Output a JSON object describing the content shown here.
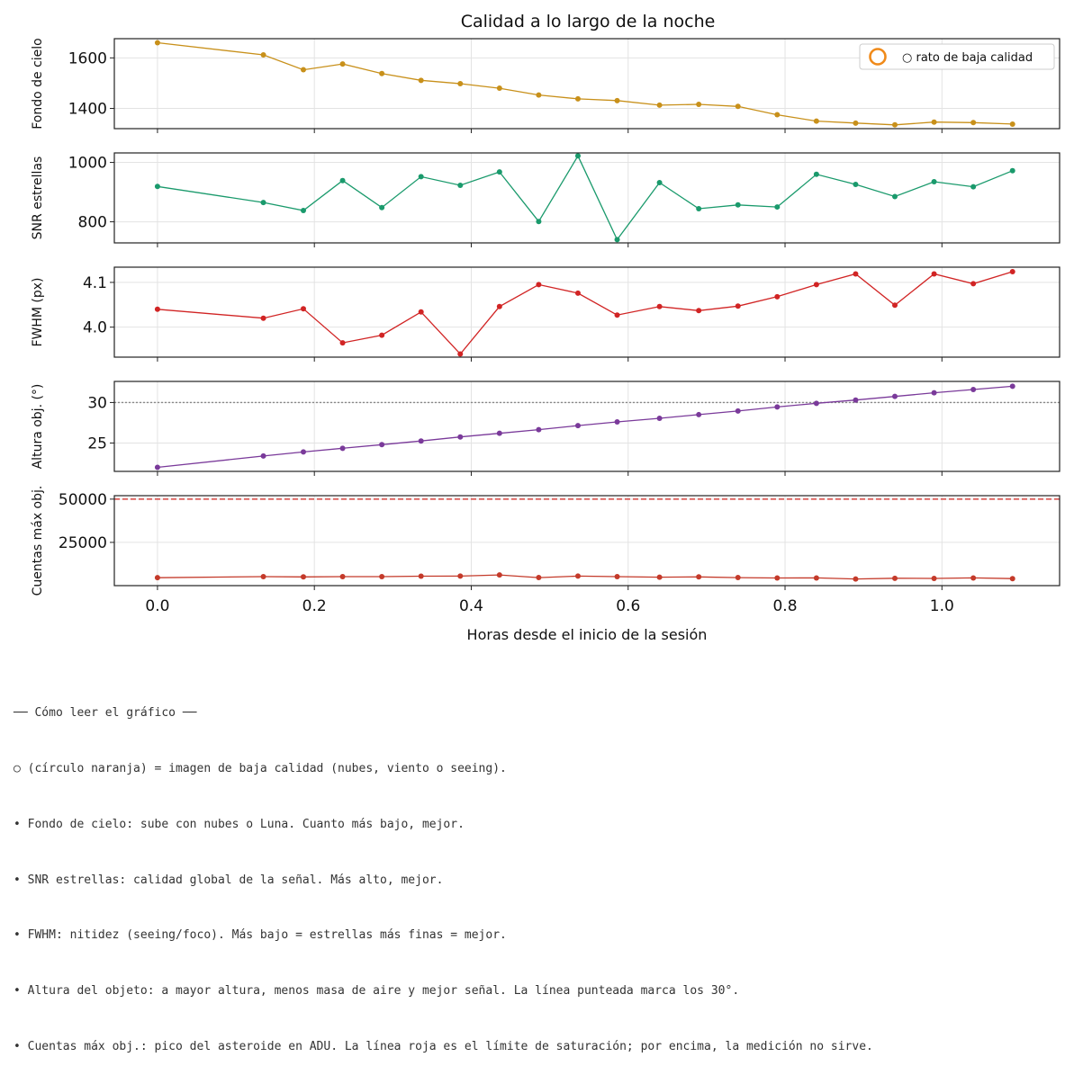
{
  "chart_data": {
    "type": "line",
    "title": "Calidad a lo largo de la noche",
    "xlabel": "Horas desde el inicio de la sesión",
    "xlim": [
      -0.055,
      1.15
    ],
    "xticks": [
      0.0,
      0.2,
      0.4,
      0.6,
      0.8,
      1.0
    ],
    "xtick_labels": [
      "0.0",
      "0.2",
      "0.4",
      "0.6",
      "0.8",
      "1.0"
    ],
    "x": [
      0.0,
      0.135,
      0.186,
      0.236,
      0.286,
      0.336,
      0.386,
      0.436,
      0.486,
      0.536,
      0.586,
      0.64,
      0.69,
      0.74,
      0.79,
      0.84,
      0.89,
      0.94,
      0.99,
      1.04,
      1.09
    ],
    "grid": true,
    "legend": {
      "position": "upper right",
      "entries": [
        {
          "marker": "orange-circle",
          "label": "○ rato de baja calidad"
        }
      ]
    },
    "panels": [
      {
        "ylabel": "Fondo de cielo",
        "color": "#c8901a",
        "ylim": [
          1320,
          1676
        ],
        "yticks": [
          1400,
          1600
        ],
        "ytick_labels": [
          "1400",
          "1600"
        ],
        "values": [
          1660,
          1612,
          1553,
          1576,
          1538,
          1511,
          1498,
          1480,
          1453,
          1438,
          1431,
          1413,
          1416,
          1408,
          1375,
          1350,
          1342,
          1335,
          1346,
          1344,
          1338
        ]
      },
      {
        "ylabel": "SNR estrellas",
        "color": "#1a9a6c",
        "ylim": [
          729,
          1032
        ],
        "yticks": [
          800,
          1000
        ],
        "ytick_labels": [
          "800",
          "1000"
        ],
        "values": [
          919,
          865,
          838,
          939,
          848,
          952,
          923,
          968,
          801,
          1022,
          740,
          932,
          844,
          857,
          850,
          960,
          926,
          885,
          935,
          918,
          972
        ]
      },
      {
        "ylabel": "FWHM (px)",
        "color": "#d12424",
        "ylim": [
          3.933,
          4.134
        ],
        "yticks": [
          4.0,
          4.1
        ],
        "ytick_labels": [
          "4.0",
          "4.1"
        ],
        "values": [
          4.04,
          4.02,
          4.041,
          3.965,
          3.982,
          4.034,
          3.94,
          4.046,
          4.095,
          4.076,
          4.027,
          4.046,
          4.037,
          4.047,
          4.068,
          4.095,
          4.119,
          4.049,
          4.119,
          4.097,
          4.124
        ]
      },
      {
        "ylabel": "Altura obj. (°)",
        "color": "#7a3a9a",
        "ylim": [
          21.5,
          32.6
        ],
        "yticks": [
          25,
          30
        ],
        "ytick_labels": [
          "25",
          "30"
        ],
        "hline": {
          "y": 30,
          "style": "dotted",
          "color": "#888888"
        },
        "values": [
          22.0,
          23.4,
          23.9,
          24.35,
          24.8,
          25.25,
          25.75,
          26.2,
          26.65,
          27.15,
          27.6,
          28.05,
          28.5,
          28.95,
          29.45,
          29.9,
          30.3,
          30.75,
          31.2,
          31.6,
          32.0
        ]
      },
      {
        "ylabel": "Cuentas máx obj.",
        "color": "#c43a2a",
        "ylim": [
          0,
          52000
        ],
        "yticks": [
          25000,
          50000
        ],
        "ytick_labels": [
          "25000",
          "50000"
        ],
        "hline": {
          "y": 50000,
          "style": "dashed",
          "color": "#d9534f"
        },
        "values": [
          4600,
          5200,
          5050,
          5200,
          5200,
          5450,
          5500,
          6200,
          4650,
          5500,
          5200,
          4900,
          5050,
          4650,
          4400,
          4450,
          3850,
          4250,
          4150,
          4450,
          4050
        ]
      }
    ]
  },
  "notes": {
    "heading": "── Cómo leer el gráfico ──",
    "lines": [
      "○ (círculo naranja) = imagen de baja calidad (nubes, viento o seeing).",
      "• Fondo de cielo: sube con nubes o Luna. Cuanto más bajo, mejor.",
      "• SNR estrellas: calidad global de la señal. Más alto, mejor.",
      "• FWHM: nitidez (seeing/foco). Más bajo = estrellas más finas = mejor.",
      "• Altura del objeto: a mayor altura, menos masa de aire y mejor señal. La línea punteada marca los 30°.",
      "• Cuentas máx obj.: pico del asteroide en ADU. La línea roja es el límite de saturación; por encima, la medición no sirve."
    ]
  }
}
